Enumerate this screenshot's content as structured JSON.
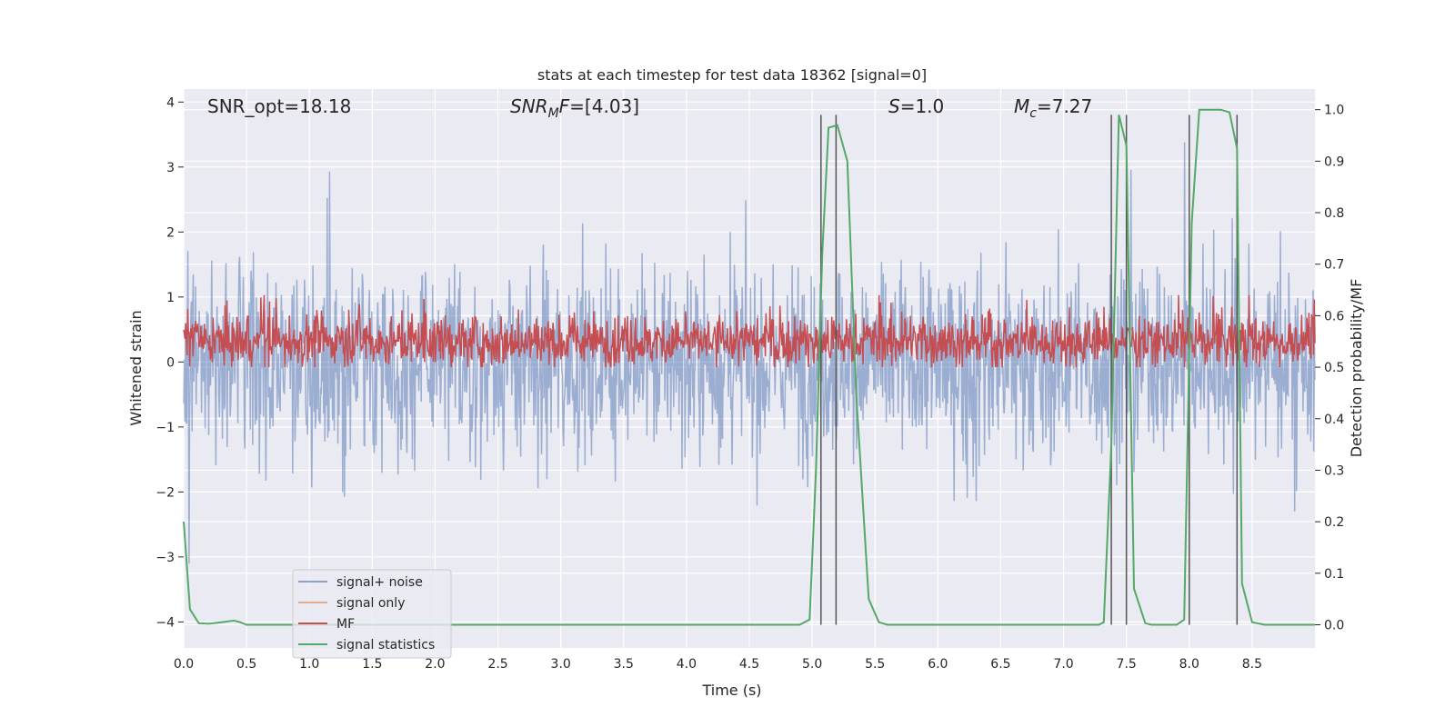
{
  "chart_data": {
    "type": "line",
    "title": "stats at each timestep for test data 18362 [signal=0]",
    "xlabel": "Time (s)",
    "ylabel_left": "Whitened strain",
    "ylabel_right": "Detection probability/MF",
    "xlim": [
      0.0,
      9.0
    ],
    "ylim_left": [
      -4.4,
      4.2
    ],
    "ylim_right": [
      -0.045,
      1.04
    ],
    "x_ticks": [
      "0.0",
      "0.5",
      "1.0",
      "1.5",
      "2.0",
      "2.5",
      "3.0",
      "3.5",
      "4.0",
      "4.5",
      "5.0",
      "5.5",
      "6.0",
      "6.5",
      "7.0",
      "7.5",
      "8.0",
      "8.5"
    ],
    "y_ticks_left": [
      "−4",
      "−3",
      "−2",
      "−1",
      "0",
      "1",
      "2",
      "3",
      "4"
    ],
    "y_ticks_right": [
      "0.0",
      "0.1",
      "0.2",
      "0.3",
      "0.4",
      "0.5",
      "0.6",
      "0.7",
      "0.8",
      "0.9",
      "1.0"
    ],
    "grid": true,
    "legend_position": "lower-left",
    "annotations": {
      "snr_opt": "SNR_opt=18.18",
      "snr_mf_italic": "SNR",
      "snr_mf_sub": "M",
      "snr_mf_italic2": "F",
      "snr_mf_rest": "=[4.03]",
      "s_italic": "S",
      "s_rest": "=1.0",
      "mc_italic": "M",
      "mc_sub": "c",
      "mc_rest": "=7.27"
    },
    "series": [
      {
        "name": "signal+ noise",
        "color": "#4c72b0",
        "axis": "left",
        "style": "dense noise band",
        "approx_range": [
          -3.3,
          3.5
        ]
      },
      {
        "name": "signal only",
        "color": "#dd8452",
        "axis": "left",
        "values": []
      },
      {
        "name": "MF",
        "color": "#c44e52",
        "axis": "left",
        "style": "dense noise band",
        "approx_range": [
          0.0,
          1.0
        ]
      },
      {
        "name": "signal statistics",
        "color": "#55a868",
        "axis": "right",
        "x": [
          0.0,
          0.05,
          0.12,
          0.2,
          0.3,
          0.4,
          0.45,
          0.5,
          1.0,
          2.0,
          3.0,
          4.0,
          4.9,
          4.98,
          5.03,
          5.08,
          5.13,
          5.2,
          5.28,
          5.35,
          5.45,
          5.53,
          5.6,
          6.0,
          7.0,
          7.28,
          7.32,
          7.38,
          7.44,
          7.5,
          7.56,
          7.65,
          7.7,
          7.85,
          7.9,
          7.96,
          8.02,
          8.08,
          8.15,
          8.25,
          8.32,
          8.38,
          8.42,
          8.5,
          8.6,
          9.0
        ],
        "y": [
          0.2,
          0.03,
          0.003,
          0.002,
          0.005,
          0.008,
          0.005,
          0.0,
          0.0,
          0.0,
          0.0,
          0.0,
          0.0,
          0.01,
          0.3,
          0.72,
          0.965,
          0.97,
          0.9,
          0.45,
          0.05,
          0.005,
          0.0,
          0.0,
          0.0,
          0.0,
          0.005,
          0.35,
          0.99,
          0.93,
          0.07,
          0.003,
          0.0,
          0.0,
          0.0,
          0.01,
          0.78,
          1.0,
          1.0,
          1.0,
          0.995,
          0.925,
          0.08,
          0.005,
          0.0,
          0.0
        ]
      }
    ],
    "vlines": [
      {
        "x": 5.07,
        "ymin": 0.0,
        "ymax": 0.99
      },
      {
        "x": 5.19,
        "ymin": 0.0,
        "ymax": 0.99
      },
      {
        "x": 7.38,
        "ymin": 0.0,
        "ymax": 0.99
      },
      {
        "x": 7.5,
        "ymin": 0.0,
        "ymax": 0.99
      },
      {
        "x": 8.0,
        "ymin": 0.0,
        "ymax": 0.99
      },
      {
        "x": 8.38,
        "ymin": 0.0,
        "ymax": 0.99
      }
    ],
    "colors": {
      "background": "#eaeaf2",
      "grid": "#ffffff",
      "noise": "#4c72b0",
      "signal_only": "#dd8452",
      "mf": "#c44e52",
      "stat": "#55a868",
      "vline": "#555555"
    }
  }
}
